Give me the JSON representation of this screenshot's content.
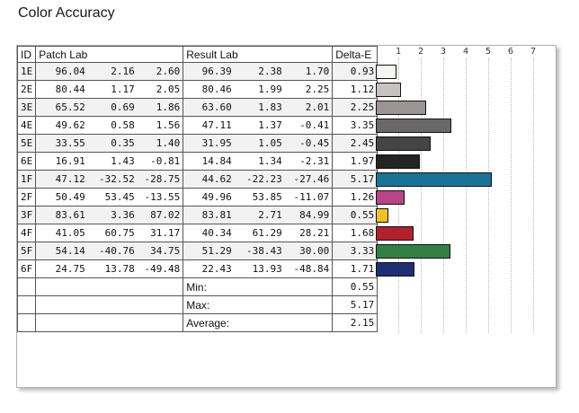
{
  "title": "Color Accuracy",
  "headers": {
    "id": "ID",
    "patch": "Patch Lab",
    "result": "Result Lab",
    "delta": "Delta-E"
  },
  "axis_ticks": [
    "1",
    "2",
    "3",
    "4",
    "5",
    "6",
    "7"
  ],
  "rows": [
    {
      "id": "1E",
      "p": [
        "96.04",
        "2.16",
        "2.60"
      ],
      "r": [
        "96.39",
        "2.38",
        "1.70"
      ],
      "de": "0.93",
      "color": "#f8f4f2"
    },
    {
      "id": "2E",
      "p": [
        "80.44",
        "1.17",
        "2.05"
      ],
      "r": [
        "80.46",
        "1.99",
        "2.25"
      ],
      "de": "1.12",
      "color": "#c8c3c1"
    },
    {
      "id": "3E",
      "p": [
        "65.52",
        "0.69",
        "1.86"
      ],
      "r": [
        "63.60",
        "1.83",
        "2.01"
      ],
      "de": "2.25",
      "color": "#9a9594"
    },
    {
      "id": "4E",
      "p": [
        "49.62",
        "0.58",
        "1.56"
      ],
      "r": [
        "47.11",
        "1.37",
        "-0.41"
      ],
      "de": "3.35",
      "color": "#6b6868"
    },
    {
      "id": "5E",
      "p": [
        "33.55",
        "0.35",
        "1.40"
      ],
      "r": [
        "31.95",
        "1.05",
        "-0.45"
      ],
      "de": "2.45",
      "color": "#464546"
    },
    {
      "id": "6E",
      "p": [
        "16.91",
        "1.43",
        "-0.81"
      ],
      "r": [
        "14.84",
        "1.34",
        "-2.31"
      ],
      "de": "1.97",
      "color": "#242324"
    },
    {
      "id": "1F",
      "p": [
        "47.12",
        "-32.52",
        "-28.75"
      ],
      "r": [
        "44.62",
        "-22.23",
        "-27.46"
      ],
      "de": "5.17",
      "color": "#1a7297"
    },
    {
      "id": "2F",
      "p": [
        "50.49",
        "53.45",
        "-13.55"
      ],
      "r": [
        "49.96",
        "53.85",
        "-11.07"
      ],
      "de": "1.26",
      "color": "#b74486"
    },
    {
      "id": "3F",
      "p": [
        "83.61",
        "3.36",
        "87.02"
      ],
      "r": [
        "83.81",
        "2.71",
        "84.99"
      ],
      "de": "0.55",
      "color": "#f0c125"
    },
    {
      "id": "4F",
      "p": [
        "41.05",
        "60.75",
        "31.17"
      ],
      "r": [
        "40.34",
        "61.29",
        "28.21"
      ],
      "de": "1.68",
      "color": "#b1212f"
    },
    {
      "id": "5F",
      "p": [
        "54.14",
        "-40.76",
        "34.75"
      ],
      "r": [
        "51.29",
        "-38.43",
        "30.00"
      ],
      "de": "3.33",
      "color": "#347f46"
    },
    {
      "id": "6F",
      "p": [
        "24.75",
        "13.78",
        "-49.48"
      ],
      "r": [
        "22.43",
        "13.93",
        "-48.84"
      ],
      "de": "1.71",
      "color": "#1e2f73"
    }
  ],
  "summary": [
    {
      "label": "Min:",
      "value": "0.55"
    },
    {
      "label": "Max:",
      "value": "5.17"
    },
    {
      "label": "Average:",
      "value": "2.15"
    }
  ],
  "chart_data": {
    "type": "bar",
    "categories": [
      "1E",
      "2E",
      "3E",
      "4E",
      "5E",
      "6E",
      "1F",
      "2F",
      "3F",
      "4F",
      "5F",
      "6F"
    ],
    "values": [
      0.93,
      1.12,
      2.25,
      3.35,
      2.45,
      1.97,
      5.17,
      1.26,
      0.55,
      1.68,
      3.33,
      1.71
    ],
    "xlim": [
      0,
      7.2
    ],
    "orientation": "horizontal"
  }
}
